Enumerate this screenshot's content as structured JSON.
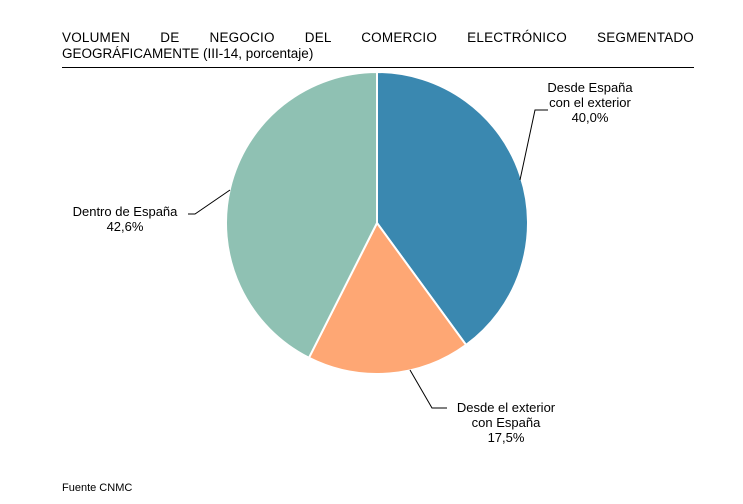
{
  "title_line1": "VOLUMEN DE NEGOCIO DEL COMERCIO ELECTRÓNICO SEGMENTADO",
  "title_line2": "GEOGRÁFICAMENTE (III-14, porcentaje)",
  "source": "Fuente CNMC",
  "chart_data": {
    "type": "pie",
    "title": "VOLUMEN DE NEGOCIO DEL COMERCIO ELECTRÓNICO SEGMENTADO GEOGRÁFICAMENTE (III-14, porcentaje)",
    "slices": [
      {
        "label_lines": [
          "Desde España",
          "con el exterior"
        ],
        "value": 40.0,
        "value_label": "40,0%",
        "color": "#3a88b0"
      },
      {
        "label_lines": [
          "Desde el exterior",
          "con España"
        ],
        "value": 17.5,
        "value_label": "17,5%",
        "color": "#fea774"
      },
      {
        "label_lines": [
          "Dentro de España"
        ],
        "value": 42.6,
        "value_label": "42,6%",
        "color": "#8fc1b3"
      }
    ],
    "start_angle": "12 o'clock",
    "direction": "clockwise",
    "legend": "none"
  }
}
